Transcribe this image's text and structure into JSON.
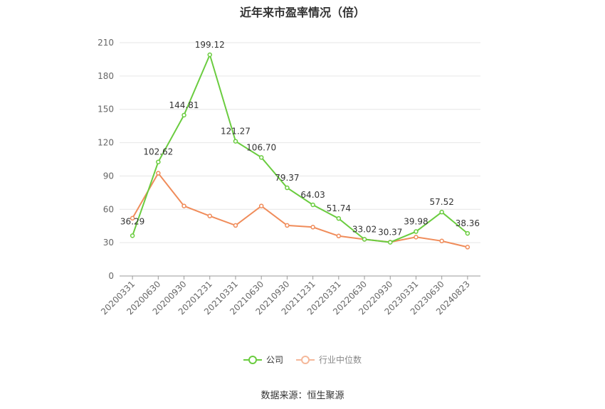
{
  "chart_data": {
    "type": "line",
    "title": "近年来市盈率情况（倍）",
    "categories": [
      "20200331",
      "20200630",
      "20200930",
      "20201231",
      "20210331",
      "20210630",
      "20210930",
      "20211231",
      "20220331",
      "20220630",
      "20220930",
      "20230331",
      "20230630",
      "20240823"
    ],
    "series": [
      {
        "name": "公司",
        "color": "#6acc3f",
        "values": [
          36.29,
          102.62,
          144.81,
          199.12,
          121.27,
          106.7,
          79.37,
          64.03,
          51.74,
          33.02,
          30.37,
          39.98,
          57.52,
          38.36
        ],
        "labels": [
          "36.29",
          "102.62",
          "144.81",
          "199.12",
          "121.27",
          "106.70",
          "79.37",
          "64.03",
          "51.74",
          "33.02",
          "30.37",
          "39.98",
          "57.52",
          "38.36"
        ]
      },
      {
        "name": "行业中位数",
        "color": "#f08c5a",
        "values": [
          52,
          92.5,
          63,
          54,
          45.5,
          63,
          45.5,
          44,
          36,
          33,
          30.5,
          35,
          31.5,
          26
        ]
      }
    ],
    "yticks": [
      "0",
      "30",
      "60",
      "90",
      "120",
      "150",
      "180",
      "210"
    ],
    "ylim": [
      0,
      210
    ],
    "grid": true,
    "legend": "bottom"
  },
  "source": "数据来源：恒生聚源"
}
